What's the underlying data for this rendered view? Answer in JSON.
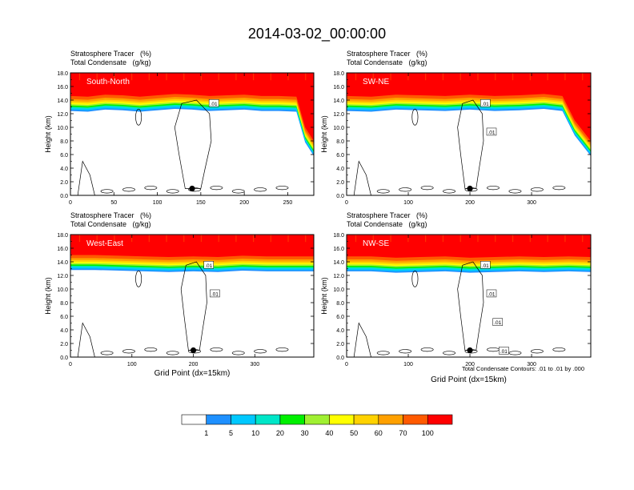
{
  "figure": {
    "title": "2014-03-02_00:00:00",
    "footnote": "Total Condensate Contours: .01 to .01 by .000"
  },
  "chart_data": [
    {
      "type": "heatmap",
      "label": "South-North",
      "title_lines": [
        "Stratosphere Tracer   (%)",
        "Total Condensate   (g/kg)"
      ],
      "ylabel": "Height (km)",
      "xlabel": "",
      "xlim": [
        0,
        280
      ],
      "ylim": [
        0,
        18
      ],
      "xticks": [
        0,
        50,
        100,
        150,
        200,
        250
      ],
      "yticks": [
        "0.0",
        "2.0",
        "4.0",
        "6.0",
        "8.0",
        "10.0",
        "12.0",
        "14.0",
        "16.0",
        "18.0"
      ],
      "contour_labels": [
        ".01"
      ],
      "marker_x": 140,
      "tropopause_km": [
        [
          0,
          14.6
        ],
        [
          20,
          14.5
        ],
        [
          40,
          14.8
        ],
        [
          60,
          14.7
        ],
        [
          80,
          14.5
        ],
        [
          100,
          14.7
        ],
        [
          120,
          14.9
        ],
        [
          140,
          14.8
        ],
        [
          160,
          14.6
        ],
        [
          180,
          14.7
        ],
        [
          200,
          14.8
        ],
        [
          220,
          14.6
        ],
        [
          240,
          14.6
        ],
        [
          260,
          14.5
        ],
        [
          270,
          10.0
        ],
        [
          280,
          8.0
        ]
      ]
    },
    {
      "type": "heatmap",
      "label": "SW-NE",
      "title_lines": [
        "Stratosphere Tracer   (%)",
        "Total Condensate   (g/kg)"
      ],
      "ylabel": "Height (km)",
      "xlabel": "",
      "xlim": [
        0,
        396
      ],
      "ylim": [
        0,
        18
      ],
      "xticks": [
        0,
        100,
        200,
        300
      ],
      "yticks": [
        "0.0",
        "2.0",
        "4.0",
        "6.0",
        "8.0",
        "10.0",
        "12.0",
        "14.0",
        "16.0",
        "18.0"
      ],
      "contour_labels": [
        ".01",
        ".01"
      ],
      "marker_x": 200,
      "tropopause_km": [
        [
          0,
          14.6
        ],
        [
          40,
          14.5
        ],
        [
          80,
          14.8
        ],
        [
          120,
          14.7
        ],
        [
          160,
          14.6
        ],
        [
          200,
          14.8
        ],
        [
          240,
          14.6
        ],
        [
          280,
          14.7
        ],
        [
          320,
          14.9
        ],
        [
          350,
          14.6
        ],
        [
          370,
          11.0
        ],
        [
          396,
          8.0
        ]
      ]
    },
    {
      "type": "heatmap",
      "label": "West-East",
      "title_lines": [
        "Stratosphere Tracer   (%)",
        "Total Condensate   (g/kg)"
      ],
      "ylabel": "Height (km)",
      "xlabel": "Grid Point (dx=15km)",
      "xlim": [
        0,
        396
      ],
      "ylim": [
        0,
        18
      ],
      "xticks": [
        0,
        100,
        200,
        300
      ],
      "yticks": [
        "0.0",
        "2.0",
        "4.0",
        "6.0",
        "8.0",
        "10.0",
        "12.0",
        "14.0",
        "16.0",
        "18.0"
      ],
      "contour_labels": [
        ".01",
        ".01"
      ],
      "marker_x": 200,
      "tropopause_km": [
        [
          0,
          15.0
        ],
        [
          40,
          15.0
        ],
        [
          80,
          14.9
        ],
        [
          120,
          14.8
        ],
        [
          160,
          14.7
        ],
        [
          200,
          14.8
        ],
        [
          240,
          14.7
        ],
        [
          280,
          14.9
        ],
        [
          320,
          14.8
        ],
        [
          360,
          14.8
        ],
        [
          396,
          14.8
        ]
      ]
    },
    {
      "type": "heatmap",
      "label": "NW-SE",
      "title_lines": [
        "Stratosphere Tracer   (%)",
        "Total Condensate   (g/kg)"
      ],
      "ylabel": "Height (km)",
      "xlabel": "Grid Point (dx=15km)",
      "xlim": [
        0,
        396
      ],
      "ylim": [
        0,
        18
      ],
      "xticks": [
        0,
        100,
        200,
        300
      ],
      "yticks": [
        "0.0",
        "2.0",
        "4.0",
        "6.0",
        "8.0",
        "10.0",
        "12.0",
        "14.0",
        "16.0",
        "18.0"
      ],
      "contour_labels": [
        ".01",
        ".01",
        ".01",
        ".01"
      ],
      "marker_x": 200,
      "tropopause_km": [
        [
          0,
          14.8
        ],
        [
          40,
          14.8
        ],
        [
          80,
          14.6
        ],
        [
          120,
          14.7
        ],
        [
          160,
          14.8
        ],
        [
          200,
          14.6
        ],
        [
          240,
          14.7
        ],
        [
          280,
          14.8
        ],
        [
          320,
          14.7
        ],
        [
          360,
          14.8
        ],
        [
          396,
          14.7
        ]
      ]
    }
  ],
  "colorbar": {
    "labels": [
      "1",
      "5",
      "10",
      "20",
      "30",
      "40",
      "50",
      "60",
      "70",
      "100"
    ],
    "colors": [
      "#ffffff",
      "#1e90ff",
      "#00c8ff",
      "#00e6c8",
      "#00f000",
      "#a0f032",
      "#ffff00",
      "#ffd200",
      "#ffa000",
      "#ff5a00",
      "#ff0000"
    ]
  },
  "colors": {
    "contour": "#000000",
    "background": "#ffffff"
  }
}
